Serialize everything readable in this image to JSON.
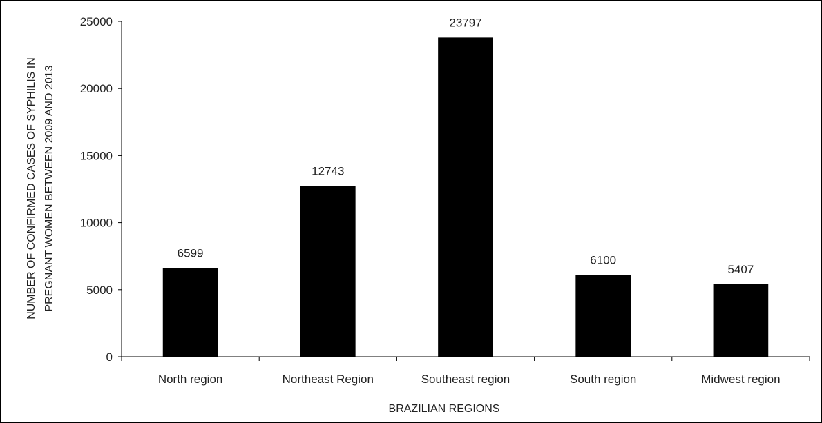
{
  "chart_data": {
    "type": "bar",
    "title": "",
    "xlabel": "BRAZILIAN REGIONS",
    "ylabel_lines": [
      "NUMBER OF CONFIRMED CASES OF SYPHILIS IN",
      "PREGNANT WOMEN BETWEEN 2009 AND 2013"
    ],
    "categories": [
      "North region",
      "Northeast Region",
      "Southeast region",
      "South region",
      "Midwest region"
    ],
    "values": [
      6599,
      12743,
      23797,
      6100,
      5407
    ],
    "data_labels": [
      "6599",
      "12743",
      "23797",
      "6100",
      "5407"
    ],
    "ylim": [
      0,
      25000
    ],
    "yticks": [
      0,
      5000,
      10000,
      15000,
      20000,
      25000
    ],
    "ytick_labels": [
      "0",
      "5000",
      "10000",
      "15000",
      "20000",
      "25000"
    ],
    "grid": false,
    "legend": "none",
    "bar_color": "#000000"
  }
}
